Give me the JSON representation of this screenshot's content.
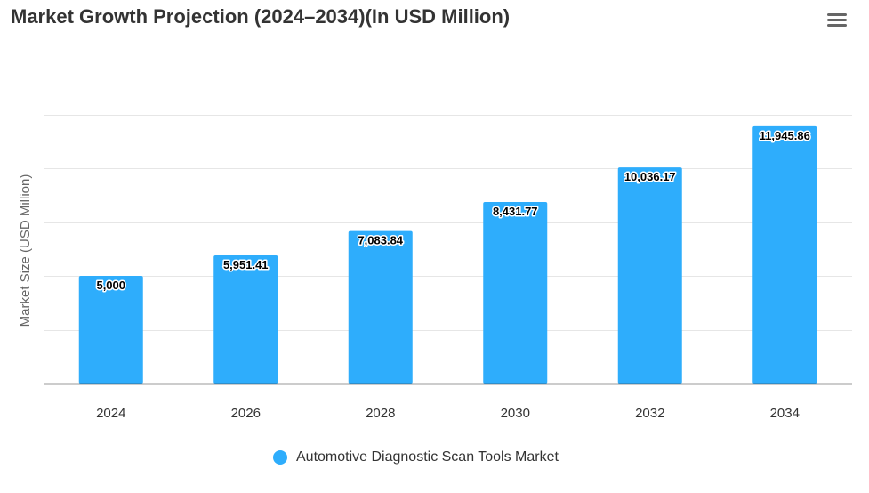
{
  "header": {
    "title": "Market Growth Projection (2024–2034)(In USD Million)",
    "menu_icon": "hamburger-menu-icon"
  },
  "colors": {
    "series": "#2eadfc",
    "grid": "#e6e6e6",
    "axis": "#333333"
  },
  "chart_data": {
    "type": "bar",
    "title": "Market Growth Projection (2024–2034)(In USD Million)",
    "xlabel": "",
    "ylabel": "Market Size (USD Million)",
    "categories": [
      "2024",
      "2026",
      "2028",
      "2030",
      "2032",
      "2034"
    ],
    "series": [
      {
        "name": "Automotive Diagnostic Scan Tools Market",
        "values": [
          5000,
          5951.41,
          7083.84,
          8431.77,
          10036.17,
          11945.86
        ],
        "labels": [
          "5,000",
          "5,951.41",
          "7,083.84",
          "8,431.77",
          "10,036.17",
          "11,945.86"
        ]
      }
    ],
    "ylim": [
      0,
      15000
    ],
    "y_tick_step": 2500,
    "y_tick_labels_visible": false,
    "grid": true,
    "legend": "bottom-center",
    "data_labels": true
  }
}
